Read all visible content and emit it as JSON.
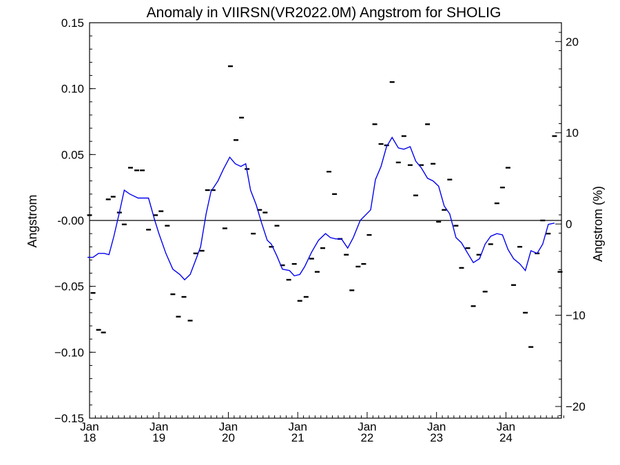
{
  "chart_data": {
    "type": "line",
    "title": "Anomaly in VIIRSN(VR2022.0M) Angstrom for SHOLIG",
    "ylabel": "Angstrom",
    "ylabel_right": "Angstrom (%)",
    "xlim": [
      2018.0,
      2024.8
    ],
    "ylim": [
      -0.15,
      0.15
    ],
    "ylim_right": [
      -21.28,
      22.06
    ],
    "y_ticks": [
      0.15,
      0.1,
      0.05,
      0.0,
      -0.05,
      -0.1,
      -0.15
    ],
    "y_tick_labels": [
      "0.15",
      "0.10",
      "0.05",
      "-0.00",
      "−0.05",
      "−0.10",
      "−0.15"
    ],
    "y_right_ticks": [
      20,
      10,
      0,
      -10,
      -20
    ],
    "y_right_tick_labels": [
      "20",
      "10",
      "0",
      "−10",
      "−20"
    ],
    "x_ticks": [
      {
        "x": 2018.0,
        "month": "Jan",
        "year": "18"
      },
      {
        "x": 2019.0,
        "month": "Jan",
        "year": "19"
      },
      {
        "x": 2020.0,
        "month": "Jan",
        "year": "20"
      },
      {
        "x": 2021.0,
        "month": "Jan",
        "year": "21"
      },
      {
        "x": 2022.0,
        "month": "Jan",
        "year": "22"
      },
      {
        "x": 2023.0,
        "month": "Jan",
        "year": "23"
      },
      {
        "x": 2024.0,
        "month": "Jan",
        "year": "24"
      }
    ],
    "zero_line": 0.0,
    "series": [
      {
        "style": "monthly-markers",
        "color": "#000000",
        "points": [
          [
            2018.0,
            0.004
          ],
          [
            2018.05,
            -0.055
          ],
          [
            2018.13,
            -0.083
          ],
          [
            2018.2,
            -0.085
          ],
          [
            2018.27,
            0.016
          ],
          [
            2018.34,
            0.018
          ],
          [
            2018.43,
            0.006
          ],
          [
            2018.5,
            -0.003
          ],
          [
            2018.59,
            0.04
          ],
          [
            2018.68,
            0.038
          ],
          [
            2018.76,
            0.038
          ],
          [
            2018.85,
            -0.007
          ],
          [
            2018.95,
            0.004
          ],
          [
            2019.03,
            0.007
          ],
          [
            2019.12,
            -0.004
          ],
          [
            2019.2,
            -0.056
          ],
          [
            2019.28,
            -0.073
          ],
          [
            2019.36,
            -0.058
          ],
          [
            2019.45,
            -0.076
          ],
          [
            2019.53,
            -0.025
          ],
          [
            2019.62,
            -0.023
          ],
          [
            2019.7,
            0.023
          ],
          [
            2019.78,
            0.023
          ],
          [
            2019.95,
            -0.006
          ],
          [
            2020.03,
            0.117
          ],
          [
            2020.11,
            0.061
          ],
          [
            2020.19,
            0.078
          ],
          [
            2020.27,
            0.039
          ],
          [
            2020.36,
            -0.01
          ],
          [
            2020.45,
            0.008
          ],
          [
            2020.53,
            0.006
          ],
          [
            2020.62,
            -0.02
          ],
          [
            2020.7,
            -0.004
          ],
          [
            2020.78,
            -0.034
          ],
          [
            2020.87,
            -0.045
          ],
          [
            2020.95,
            -0.033
          ],
          [
            2021.03,
            -0.061
          ],
          [
            2021.12,
            -0.058
          ],
          [
            2021.2,
            -0.029
          ],
          [
            2021.28,
            -0.039
          ],
          [
            2021.36,
            -0.021
          ],
          [
            2021.45,
            0.037
          ],
          [
            2021.53,
            0.02
          ],
          [
            2021.61,
            -0.014
          ],
          [
            2021.7,
            -0.026
          ],
          [
            2021.78,
            -0.053
          ],
          [
            2021.87,
            -0.035
          ],
          [
            2021.95,
            -0.033
          ],
          [
            2022.03,
            -0.011
          ],
          [
            2022.11,
            0.073
          ],
          [
            2022.2,
            0.058
          ],
          [
            2022.28,
            0.057
          ],
          [
            2022.36,
            0.105
          ],
          [
            2022.45,
            0.044
          ],
          [
            2022.53,
            0.064
          ],
          [
            2022.62,
            0.042
          ],
          [
            2022.7,
            0.019
          ],
          [
            2022.78,
            0.042
          ],
          [
            2022.87,
            0.073
          ],
          [
            2022.95,
            0.043
          ],
          [
            2023.03,
            -0.001
          ],
          [
            2023.11,
            0.008
          ],
          [
            2023.19,
            0.031
          ],
          [
            2023.28,
            -0.004
          ],
          [
            2023.36,
            -0.036
          ],
          [
            2023.45,
            -0.021
          ],
          [
            2023.53,
            -0.065
          ],
          [
            2023.61,
            -0.026
          ],
          [
            2023.7,
            -0.054
          ],
          [
            2023.78,
            -0.018
          ],
          [
            2023.87,
            0.013
          ],
          [
            2023.95,
            0.025
          ],
          [
            2024.03,
            0.04
          ],
          [
            2024.11,
            -0.049
          ],
          [
            2024.2,
            -0.02
          ],
          [
            2024.28,
            -0.07
          ],
          [
            2024.36,
            -0.096
          ],
          [
            2024.45,
            -0.025
          ],
          [
            2024.53,
            0.0
          ],
          [
            2024.61,
            -0.01
          ],
          [
            2024.7,
            0.064
          ],
          [
            2024.78,
            -0.039
          ]
        ]
      },
      {
        "style": "smoothed-line",
        "color": "#0000ee",
        "points": [
          [
            2017.97,
            -0.028
          ],
          [
            2018.05,
            -0.028
          ],
          [
            2018.13,
            -0.025
          ],
          [
            2018.21,
            -0.025
          ],
          [
            2018.28,
            -0.026
          ],
          [
            2018.35,
            -0.012
          ],
          [
            2018.43,
            0.006
          ],
          [
            2018.5,
            0.023
          ],
          [
            2018.58,
            0.02
          ],
          [
            2018.7,
            0.017
          ],
          [
            2018.85,
            0.017
          ],
          [
            2018.94,
            0.0
          ],
          [
            2019.0,
            -0.01
          ],
          [
            2019.1,
            -0.025
          ],
          [
            2019.2,
            -0.037
          ],
          [
            2019.3,
            -0.041
          ],
          [
            2019.37,
            -0.045
          ],
          [
            2019.45,
            -0.041
          ],
          [
            2019.53,
            -0.03
          ],
          [
            2019.6,
            -0.02
          ],
          [
            2019.68,
            0.005
          ],
          [
            2019.75,
            0.022
          ],
          [
            2019.85,
            0.03
          ],
          [
            2019.93,
            0.039
          ],
          [
            2020.02,
            0.048
          ],
          [
            2020.1,
            0.043
          ],
          [
            2020.18,
            0.041
          ],
          [
            2020.25,
            0.043
          ],
          [
            2020.32,
            0.023
          ],
          [
            2020.4,
            0.012
          ],
          [
            2020.48,
            -0.002
          ],
          [
            2020.56,
            -0.015
          ],
          [
            2020.62,
            -0.018
          ],
          [
            2020.7,
            -0.027
          ],
          [
            2020.78,
            -0.037
          ],
          [
            2020.88,
            -0.038
          ],
          [
            2020.95,
            -0.042
          ],
          [
            2021.03,
            -0.041
          ],
          [
            2021.1,
            -0.035
          ],
          [
            2021.2,
            -0.024
          ],
          [
            2021.3,
            -0.015
          ],
          [
            2021.4,
            -0.01
          ],
          [
            2021.47,
            -0.013
          ],
          [
            2021.55,
            -0.014
          ],
          [
            2021.63,
            -0.014
          ],
          [
            2021.72,
            -0.021
          ],
          [
            2021.8,
            -0.013
          ],
          [
            2021.9,
            0.0
          ],
          [
            2022.05,
            0.008
          ],
          [
            2022.12,
            0.031
          ],
          [
            2022.2,
            0.041
          ],
          [
            2022.28,
            0.056
          ],
          [
            2022.36,
            0.063
          ],
          [
            2022.45,
            0.055
          ],
          [
            2022.53,
            0.054
          ],
          [
            2022.62,
            0.056
          ],
          [
            2022.7,
            0.045
          ],
          [
            2022.78,
            0.04
          ],
          [
            2022.87,
            0.032
          ],
          [
            2022.95,
            0.03
          ],
          [
            2023.03,
            0.026
          ],
          [
            2023.11,
            0.011
          ],
          [
            2023.19,
            0.005
          ],
          [
            2023.28,
            -0.013
          ],
          [
            2023.36,
            -0.017
          ],
          [
            2023.45,
            -0.025
          ],
          [
            2023.53,
            -0.032
          ],
          [
            2023.62,
            -0.029
          ],
          [
            2023.7,
            -0.018
          ],
          [
            2023.78,
            -0.012
          ],
          [
            2023.87,
            -0.01
          ],
          [
            2023.95,
            -0.011
          ],
          [
            2024.03,
            -0.022
          ],
          [
            2024.11,
            -0.029
          ],
          [
            2024.2,
            -0.033
          ],
          [
            2024.28,
            -0.038
          ],
          [
            2024.36,
            -0.023
          ],
          [
            2024.45,
            -0.025
          ],
          [
            2024.53,
            -0.018
          ],
          [
            2024.61,
            -0.003
          ],
          [
            2024.7,
            -0.002
          ]
        ]
      }
    ]
  }
}
